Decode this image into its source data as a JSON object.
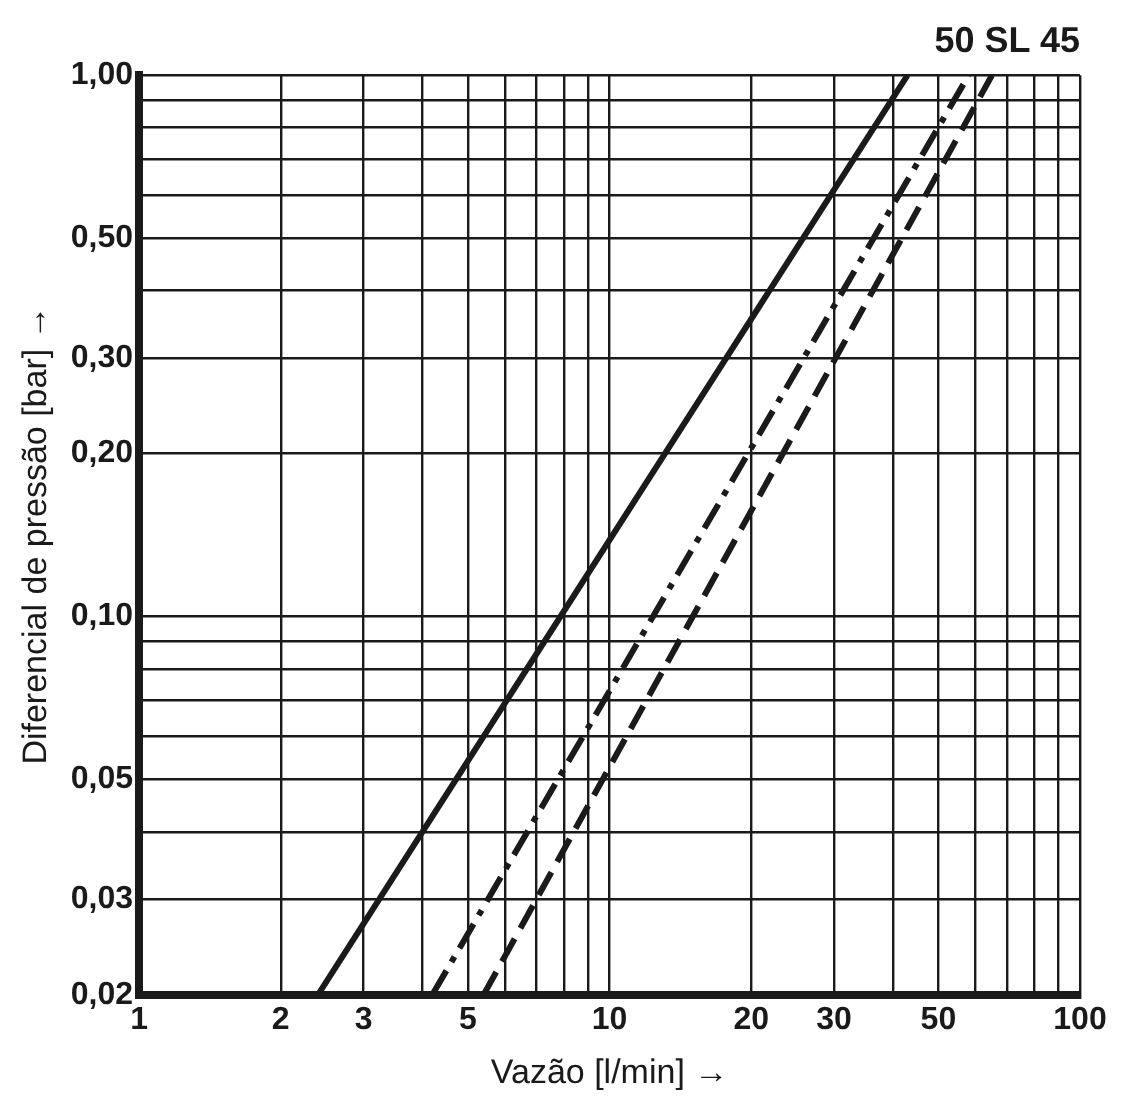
{
  "chart_data": {
    "type": "line",
    "title": "50 SL 45",
    "xlabel": "Vazão [l/min] →",
    "ylabel": "Diferencial de pressão [bar] →",
    "log": "xy",
    "grid": true,
    "marker": "none",
    "xlim": [
      1,
      100
    ],
    "ylim": [
      0.02,
      1
    ],
    "xticks": [
      1,
      2,
      3,
      {
        "value": 4,
        "label": null
      },
      5,
      {
        "value": 6,
        "label": null
      },
      {
        "value": 7,
        "label": null
      },
      {
        "value": 8,
        "label": null
      },
      {
        "value": 9,
        "label": null
      },
      10,
      20,
      30,
      {
        "value": 40,
        "label": null
      },
      50,
      {
        "value": 60,
        "label": null
      },
      {
        "value": 70,
        "label": null
      },
      {
        "value": 80,
        "label": null
      },
      {
        "value": 90,
        "label": null
      },
      100
    ],
    "yticks": [
      {
        "value": 0.02,
        "label": "0,02"
      },
      {
        "value": 0.03,
        "label": "0,03"
      },
      {
        "value": 0.04,
        "label": null
      },
      {
        "value": 0.05,
        "label": "0,05"
      },
      {
        "value": 0.06,
        "label": null
      },
      {
        "value": 0.07,
        "label": null
      },
      {
        "value": 0.08,
        "label": null
      },
      {
        "value": 0.09,
        "label": null
      },
      {
        "value": 0.1,
        "label": "0,10"
      },
      {
        "value": 0.2,
        "label": "0,20"
      },
      {
        "value": 0.3,
        "label": "0,30"
      },
      {
        "value": 0.4,
        "label": null
      },
      {
        "value": 0.5,
        "label": "0,50"
      },
      {
        "value": 0.6,
        "label": null
      },
      {
        "value": 0.7,
        "label": null
      },
      {
        "value": 0.8,
        "label": null
      },
      {
        "value": 0.9,
        "label": null
      },
      {
        "value": 1,
        "label": "1,00"
      }
    ],
    "series": [
      {
        "color": "#1a1a1a",
        "line_style": "solid",
        "x": [
          2.4,
          43
        ],
        "values": [
          0.02,
          1
        ]
      },
      {
        "color": "#1a1a1a",
        "line_style": "dashdot",
        "x": [
          4.2,
          58
        ],
        "values": [
          0.02,
          1
        ]
      },
      {
        "color": "#1a1a1a",
        "line_style": "dashed",
        "x": [
          5.4,
          65
        ],
        "values": [
          0.02,
          1
        ]
      }
    ]
  }
}
